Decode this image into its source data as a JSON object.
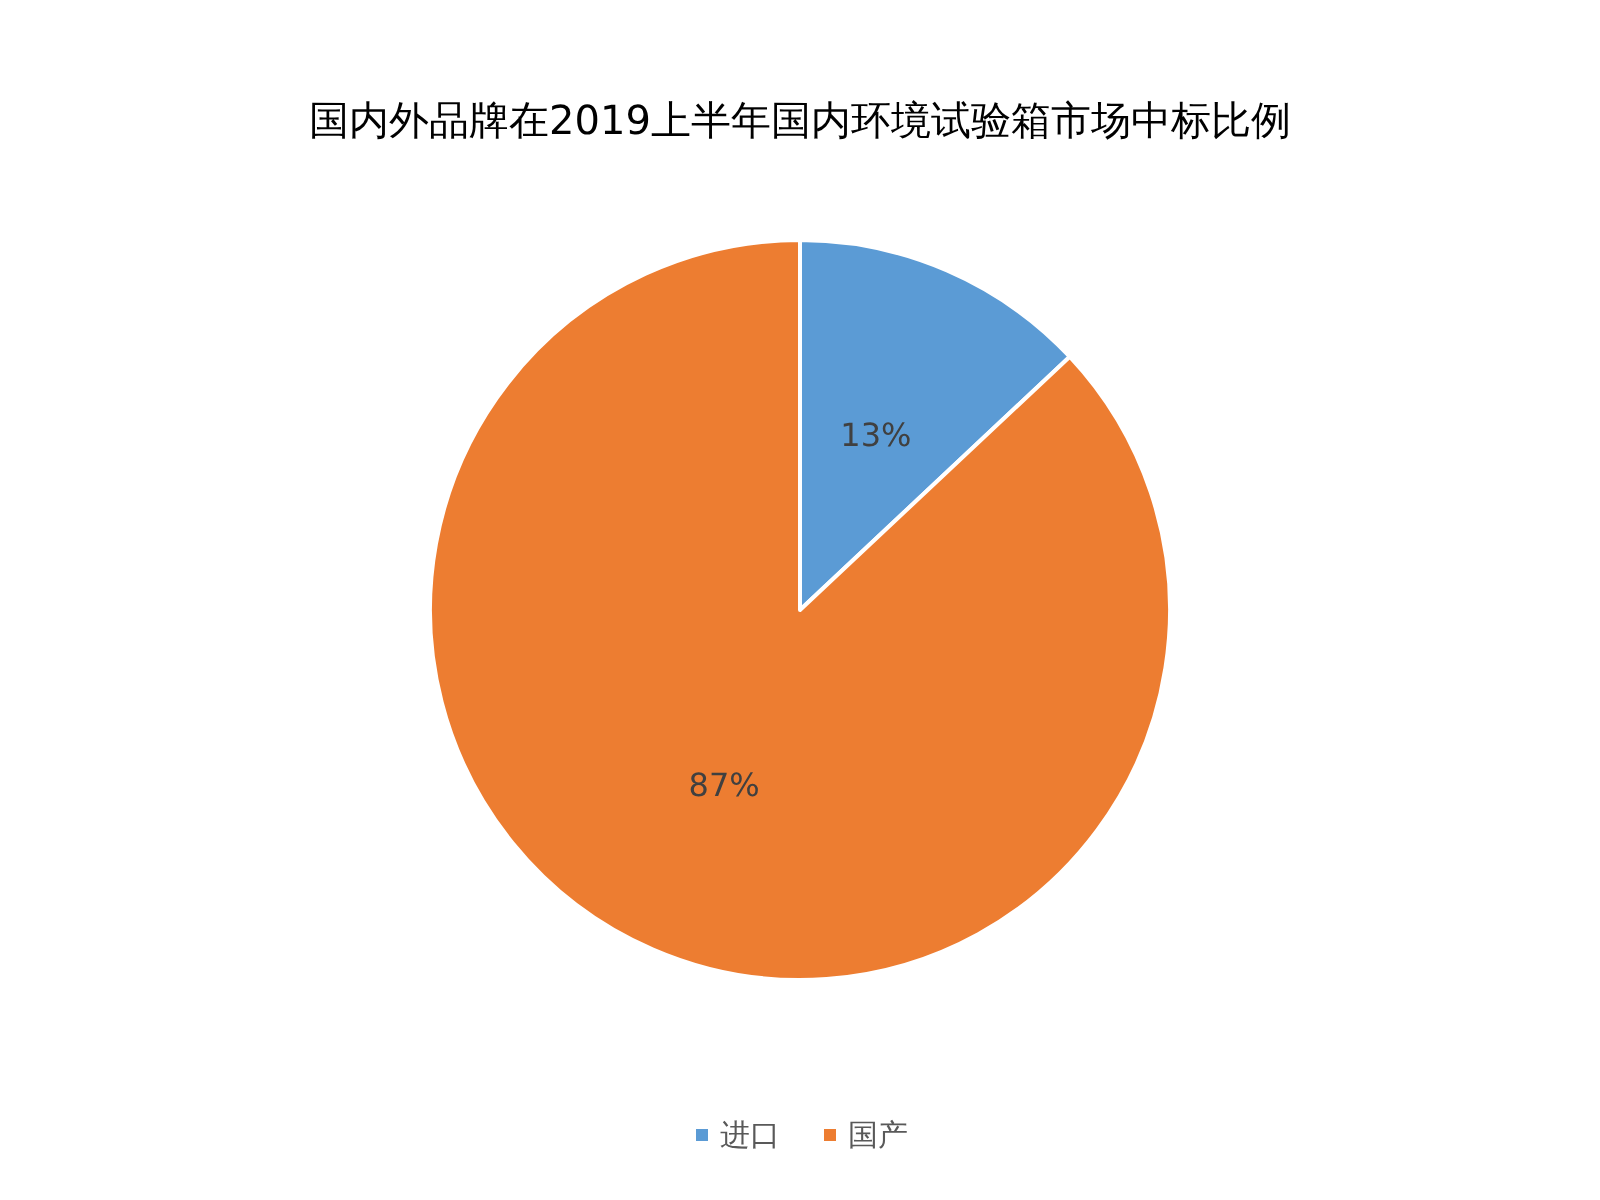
{
  "chart_data": {
    "type": "pie",
    "title": "国内外品牌在2019上半年国内环境试验箱市场中标比例",
    "categories": [
      "进口",
      "国产"
    ],
    "values": [
      13,
      87
    ],
    "colors": [
      "#5b9bd5",
      "#ed7d31"
    ],
    "value_labels": [
      "13%",
      "87%"
    ],
    "legend": "bottom"
  }
}
